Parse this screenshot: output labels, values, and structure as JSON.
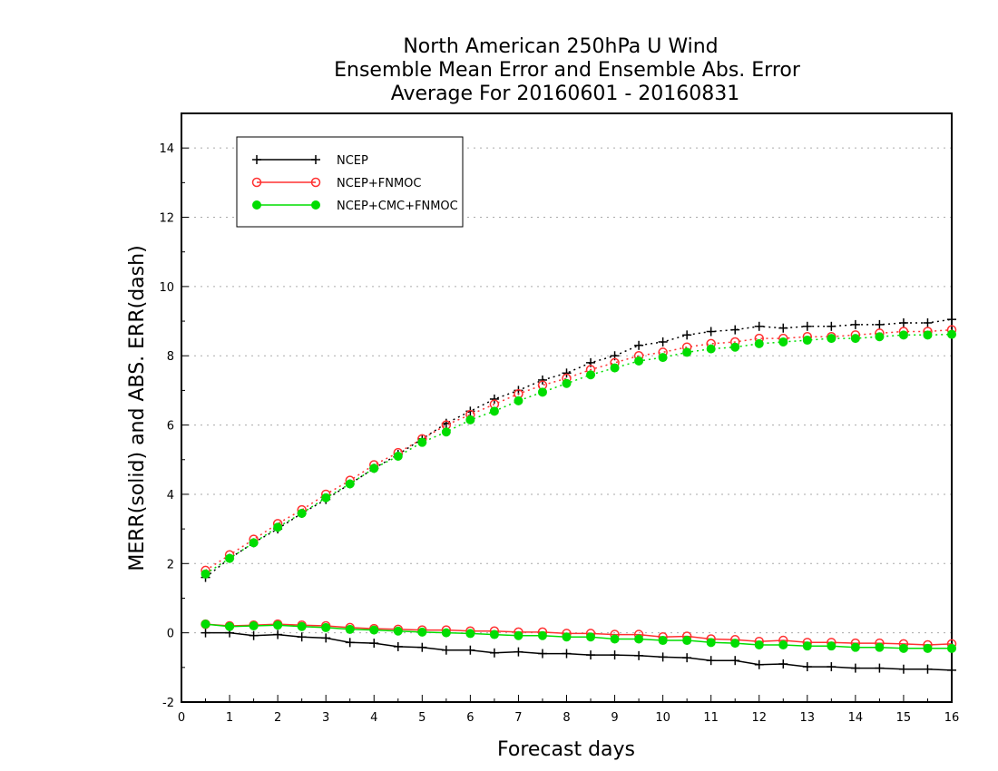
{
  "chart_data": {
    "type": "line",
    "title": [
      "North American 250hPa U Wind",
      "Ensemble Mean Error and Ensemble Abs. Error",
      "Average For 20160601 - 20160831"
    ],
    "xlabel": "Forecast days",
    "ylabel": "MERR(solid) and ABS. ERR(dash)",
    "xlim": [
      0,
      16
    ],
    "ylim": [
      -2,
      15
    ],
    "xticks": [
      0,
      1,
      2,
      3,
      4,
      5,
      6,
      7,
      8,
      9,
      10,
      11,
      12,
      13,
      14,
      15,
      16
    ],
    "xtick_labels": [
      "0",
      "1",
      "2",
      "3",
      "4",
      "5",
      "6",
      "7",
      "8",
      "9",
      "10",
      "11",
      "12",
      "13",
      "14",
      "15",
      "16"
    ],
    "yticks": [
      -2,
      0,
      2,
      4,
      6,
      8,
      10,
      12,
      14
    ],
    "ytick_labels": [
      "-2",
      "0",
      "2",
      "4",
      "6",
      "8",
      "10",
      "12",
      "14"
    ],
    "grid": "horizontal-dotted",
    "legend_position": "top-left",
    "x": [
      0.5,
      1,
      1.5,
      2,
      2.5,
      3,
      3.5,
      4,
      4.5,
      5,
      5.5,
      6,
      6.5,
      7,
      7.5,
      8,
      8.5,
      9,
      9.5,
      10,
      10.5,
      11,
      11.5,
      12,
      12.5,
      13,
      13.5,
      14,
      14.5,
      15,
      15.5,
      16
    ],
    "series": [
      {
        "name": "NCEP",
        "color": "#000000",
        "marker": "plus",
        "merr": [
          0.0,
          0.0,
          -0.08,
          -0.05,
          -0.12,
          -0.15,
          -0.28,
          -0.3,
          -0.4,
          -0.42,
          -0.5,
          -0.5,
          -0.58,
          -0.55,
          -0.6,
          -0.6,
          -0.64,
          -0.64,
          -0.66,
          -0.7,
          -0.72,
          -0.8,
          -0.8,
          -0.92,
          -0.9,
          -0.98,
          -0.98,
          -1.02,
          -1.02,
          -1.05,
          -1.05,
          -1.08
        ],
        "abserr": [
          1.6,
          2.15,
          2.6,
          3.0,
          3.45,
          3.85,
          4.3,
          4.75,
          5.15,
          5.6,
          6.05,
          6.4,
          6.75,
          7.0,
          7.3,
          7.5,
          7.8,
          8.0,
          8.3,
          8.4,
          8.6,
          8.7,
          8.75,
          8.85,
          8.8,
          8.85,
          8.85,
          8.9,
          8.9,
          8.95,
          8.95,
          9.05
        ]
      },
      {
        "name": "NCEP+FNMOC",
        "color": "#ff3030",
        "marker": "open-circle",
        "merr": [
          0.25,
          0.2,
          0.22,
          0.25,
          0.22,
          0.2,
          0.15,
          0.12,
          0.1,
          0.08,
          0.08,
          0.05,
          0.05,
          0.02,
          0.02,
          -0.02,
          -0.02,
          -0.05,
          -0.05,
          -0.12,
          -0.1,
          -0.18,
          -0.2,
          -0.25,
          -0.22,
          -0.28,
          -0.28,
          -0.3,
          -0.3,
          -0.32,
          -0.35,
          -0.32
        ],
        "abserr": [
          1.8,
          2.25,
          2.7,
          3.15,
          3.55,
          4.0,
          4.4,
          4.85,
          5.2,
          5.6,
          6.0,
          6.3,
          6.6,
          6.9,
          7.15,
          7.35,
          7.6,
          7.8,
          8.0,
          8.1,
          8.25,
          8.35,
          8.4,
          8.5,
          8.5,
          8.55,
          8.55,
          8.6,
          8.65,
          8.7,
          8.7,
          8.75
        ]
      },
      {
        "name": "NCEP+CMC+FNMOC",
        "color": "#00dd00",
        "marker": "filled-circle",
        "merr": [
          0.25,
          0.18,
          0.2,
          0.22,
          0.18,
          0.15,
          0.1,
          0.08,
          0.05,
          0.02,
          0.0,
          -0.02,
          -0.05,
          -0.08,
          -0.08,
          -0.12,
          -0.12,
          -0.18,
          -0.18,
          -0.22,
          -0.22,
          -0.28,
          -0.3,
          -0.35,
          -0.35,
          -0.38,
          -0.38,
          -0.42,
          -0.42,
          -0.45,
          -0.45,
          -0.45
        ],
        "abserr": [
          1.7,
          2.15,
          2.6,
          3.05,
          3.45,
          3.9,
          4.3,
          4.75,
          5.1,
          5.5,
          5.8,
          6.15,
          6.4,
          6.7,
          6.95,
          7.2,
          7.45,
          7.65,
          7.85,
          7.95,
          8.1,
          8.2,
          8.25,
          8.35,
          8.4,
          8.45,
          8.5,
          8.5,
          8.55,
          8.6,
          8.6,
          8.62
        ]
      }
    ]
  }
}
